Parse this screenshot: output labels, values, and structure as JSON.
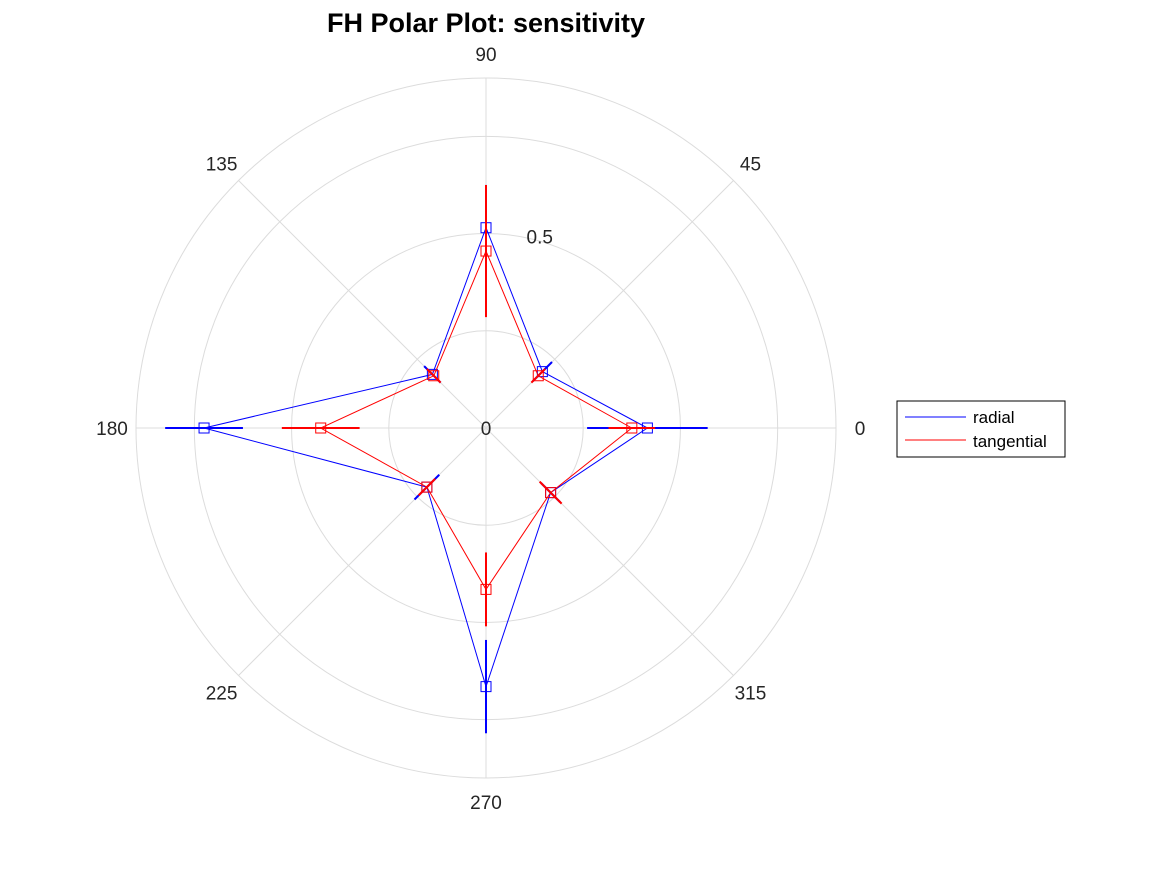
{
  "chart_data": {
    "type": "polar",
    "title": "FH Polar Plot: sensitivity",
    "angle_ticks": [
      "0",
      "45",
      "90",
      "135",
      "180",
      "225",
      "270",
      "315"
    ],
    "angle_tick_values": [
      0,
      45,
      90,
      135,
      180,
      225,
      270,
      315
    ],
    "r_ticks": [
      "0",
      "0.5"
    ],
    "r_tick_values": [
      0,
      0.5
    ],
    "rlim": [
      0,
      0.9
    ],
    "grid": true,
    "legend_position": "right",
    "markers": "square",
    "angles_deg": [
      0,
      45,
      90,
      135,
      180,
      225,
      270,
      315
    ],
    "series": [
      {
        "name": "radial",
        "color": "#0000ff",
        "r": [
          0.415,
          0.205,
          0.515,
          0.195,
          0.725,
          0.215,
          0.665,
          0.235
        ],
        "err": [
          0.155,
          0.035,
          0.11,
          0.03,
          0.1,
          0.045,
          0.12,
          0.035
        ]
      },
      {
        "name": "tangential",
        "color": "#ff0000",
        "r": [
          0.375,
          0.19,
          0.455,
          0.19,
          0.425,
          0.215,
          0.415,
          0.235
        ],
        "err": [
          0.06,
          0.025,
          0.17,
          0.025,
          0.1,
          0.03,
          0.095,
          0.04
        ]
      }
    ]
  }
}
